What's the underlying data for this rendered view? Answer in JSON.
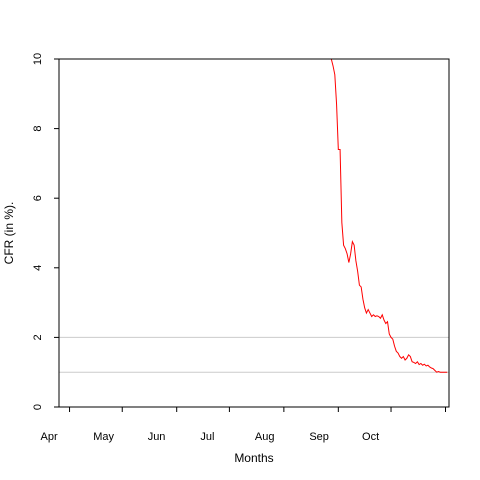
{
  "chart_data": {
    "type": "line",
    "title": "",
    "xlabel": "Months",
    "ylabel": "CFR (in %).",
    "ylim": [
      0,
      10
    ],
    "xlim": [
      "2020-03-26",
      "2020-11-03"
    ],
    "x_ticks": [
      "2020-04-01",
      "2020-05-01",
      "2020-06-01",
      "2020-07-01",
      "2020-08-01",
      "2020-09-01",
      "2020-10-01",
      "2020-11-01"
    ],
    "x_tick_labels": [
      "Apr",
      "May",
      "Jun",
      "Jul",
      "Aug",
      "Sep",
      "Oct",
      ""
    ],
    "y_ticks": [
      0,
      2,
      4,
      6,
      8,
      10
    ],
    "y_tick_labels": [
      "0",
      "2",
      "4",
      "6",
      "8",
      "10"
    ],
    "reference_lines": [
      2,
      1
    ],
    "reference_line_color": "#cccccc",
    "grid": false,
    "legend": "none",
    "series": [
      {
        "color": "#ff0000",
        "x": [
          "2020-08-28",
          "2020-08-29",
          "2020-08-30",
          "2020-08-31",
          "2020-09-01",
          "2020-09-02",
          "2020-09-03",
          "2020-09-04",
          "2020-09-05",
          "2020-09-06",
          "2020-09-07",
          "2020-09-08",
          "2020-09-09",
          "2020-09-10",
          "2020-09-11",
          "2020-09-12",
          "2020-09-13",
          "2020-09-14",
          "2020-09-15",
          "2020-09-16",
          "2020-09-17",
          "2020-09-18",
          "2020-09-19",
          "2020-09-20",
          "2020-09-21",
          "2020-09-22",
          "2020-09-23",
          "2020-09-24",
          "2020-09-25",
          "2020-09-26",
          "2020-09-27",
          "2020-09-28",
          "2020-09-29",
          "2020-09-30",
          "2020-10-01",
          "2020-10-02",
          "2020-10-03",
          "2020-10-04",
          "2020-10-05",
          "2020-10-06",
          "2020-10-07",
          "2020-10-08",
          "2020-10-09",
          "2020-10-10",
          "2020-10-11",
          "2020-10-12",
          "2020-10-13",
          "2020-10-14",
          "2020-10-15",
          "2020-10-16",
          "2020-10-17",
          "2020-10-18",
          "2020-10-19",
          "2020-10-20",
          "2020-10-21",
          "2020-10-22",
          "2020-10-23",
          "2020-10-24",
          "2020-10-25",
          "2020-10-26",
          "2020-10-27",
          "2020-10-28",
          "2020-10-29",
          "2020-10-30",
          "2020-10-31",
          "2020-11-01",
          "2020-11-02"
        ],
        "y": [
          10.0,
          9.8,
          9.55,
          8.7,
          7.4,
          7.4,
          5.3,
          4.65,
          4.55,
          4.4,
          4.15,
          4.4,
          4.75,
          4.65,
          4.2,
          3.9,
          3.5,
          3.45,
          3.1,
          2.85,
          2.7,
          2.8,
          2.7,
          2.6,
          2.65,
          2.6,
          2.62,
          2.6,
          2.55,
          2.65,
          2.5,
          2.4,
          2.45,
          2.1,
          2.0,
          1.95,
          1.75,
          1.6,
          1.55,
          1.45,
          1.4,
          1.45,
          1.35,
          1.4,
          1.5,
          1.45,
          1.3,
          1.28,
          1.25,
          1.3,
          1.22,
          1.25,
          1.2,
          1.23,
          1.18,
          1.2,
          1.15,
          1.12,
          1.1,
          1.05,
          1.0,
          1.02,
          1.0,
          1.0,
          1.0,
          1.0,
          1.0
        ]
      }
    ]
  }
}
